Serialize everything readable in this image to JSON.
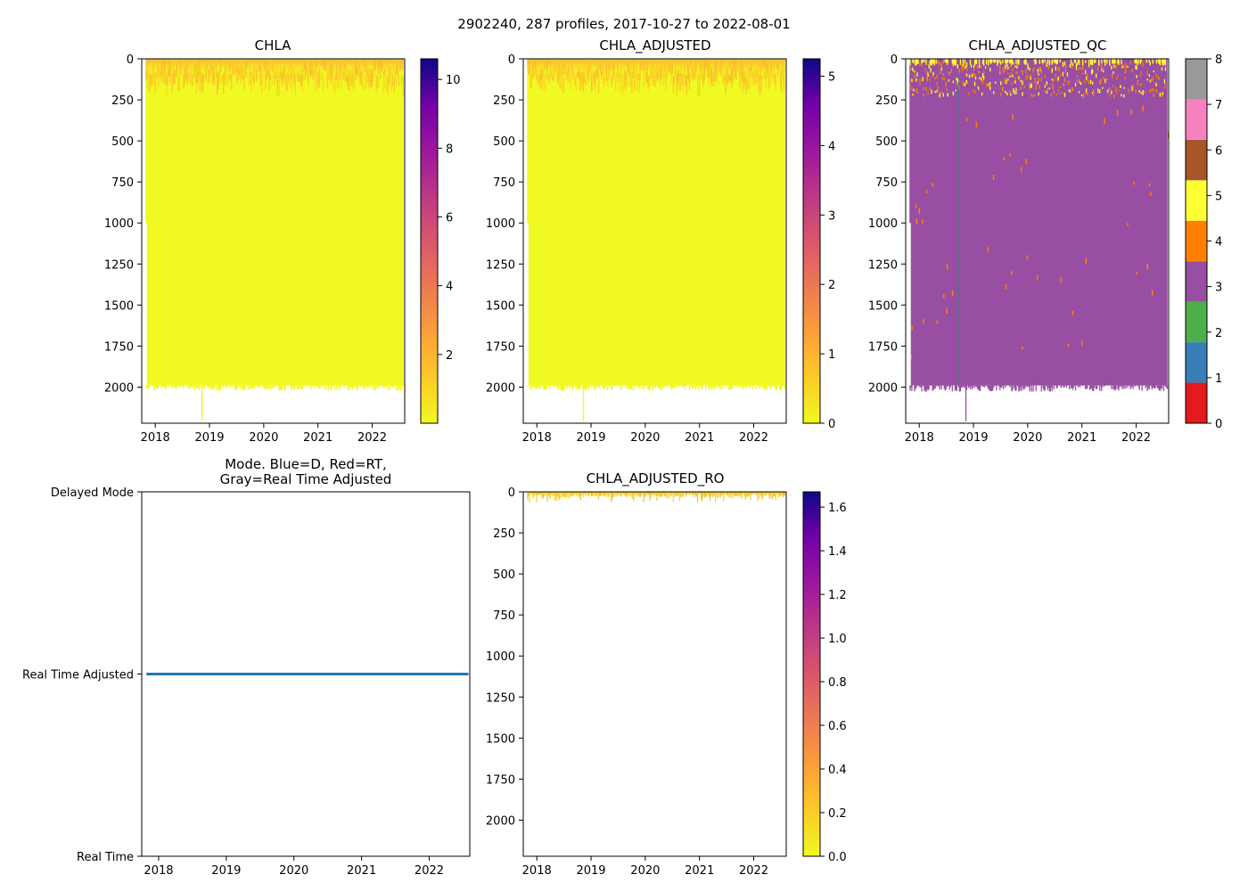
{
  "figure_title": "2902240, 287 profiles, 2017-10-27 to 2022-08-01",
  "chart_data": [
    {
      "id": "chla",
      "type": "heatmap",
      "title": "CHLA",
      "x_range": [
        2017.75,
        2022.6
      ],
      "x_ticks": [
        2018,
        2019,
        2020,
        2021,
        2022
      ],
      "x_tick_labels": [
        "2018",
        "2019",
        "2020",
        "2021",
        "2022"
      ],
      "y_range": [
        0,
        2220
      ],
      "y_inverted": true,
      "y_ticks": [
        0,
        250,
        500,
        750,
        1000,
        1250,
        1500,
        1750,
        2000
      ],
      "y_tick_labels": [
        "0",
        "250",
        "500",
        "750",
        "1000",
        "1250",
        "1500",
        "1750",
        "2000"
      ],
      "data_start": 2017.82,
      "data_end": 2022.58,
      "max_depth": 1990,
      "near_surface_depth": 80,
      "colormap": "plasma_r",
      "colorbar": {
        "range": [
          0,
          10.6
        ],
        "ticks": [
          2,
          4,
          6,
          8,
          10
        ],
        "tick_labels": [
          "2",
          "4",
          "6",
          "8",
          "10"
        ]
      }
    },
    {
      "id": "chla-adjusted",
      "type": "heatmap",
      "title": "CHLA_ADJUSTED",
      "x_range": [
        2017.75,
        2022.6
      ],
      "x_ticks": [
        2018,
        2019,
        2020,
        2021,
        2022
      ],
      "x_tick_labels": [
        "2018",
        "2019",
        "2020",
        "2021",
        "2022"
      ],
      "y_range": [
        0,
        2220
      ],
      "y_inverted": true,
      "y_ticks": [
        0,
        250,
        500,
        750,
        1000,
        1250,
        1500,
        1750,
        2000
      ],
      "y_tick_labels": [
        "0",
        "250",
        "500",
        "750",
        "1000",
        "1250",
        "1500",
        "1750",
        "2000"
      ],
      "data_start": 2017.82,
      "data_end": 2022.58,
      "max_depth": 1990,
      "near_surface_depth": 80,
      "colormap": "plasma_r",
      "colorbar": {
        "range": [
          0,
          5.25
        ],
        "ticks": [
          0,
          1,
          2,
          3,
          4,
          5
        ],
        "tick_labels": [
          "0",
          "1",
          "2",
          "3",
          "4",
          "5"
        ]
      }
    },
    {
      "id": "chla-adjusted-qc",
      "type": "heatmap",
      "title": "CHLA_ADJUSTED_QC",
      "x_range": [
        2017.75,
        2022.6
      ],
      "x_ticks": [
        2018,
        2019,
        2020,
        2021,
        2022
      ],
      "x_tick_labels": [
        "2018",
        "2019",
        "2020",
        "2021",
        "2022"
      ],
      "y_range": [
        0,
        2220
      ],
      "y_inverted": true,
      "y_ticks": [
        0,
        250,
        500,
        750,
        1000,
        1250,
        1500,
        1750,
        2000
      ],
      "y_tick_labels": [
        "0",
        "250",
        "500",
        "750",
        "1000",
        "1250",
        "1500",
        "1750",
        "2000"
      ],
      "data_start": 2017.82,
      "data_end": 2022.58,
      "max_depth": 1990,
      "dominant_qc": 3,
      "colormap": "qc_categorical",
      "qc_colors": [
        "#e41a1c",
        "#377eb8",
        "#4daf4a",
        "#984ea3",
        "#ff7f00",
        "#ffff33",
        "#a65628",
        "#f781bf",
        "#999999"
      ],
      "colorbar": {
        "range": [
          0,
          8
        ],
        "ticks": [
          0,
          1,
          2,
          3,
          4,
          5,
          6,
          7,
          8
        ],
        "tick_labels": [
          "0",
          "1",
          "2",
          "3",
          "4",
          "5",
          "6",
          "7",
          "8"
        ]
      }
    },
    {
      "id": "mode",
      "type": "line",
      "title_line1": "Mode. Blue=D, Red=RT,",
      "title_line2": "Gray=Real Time Adjusted",
      "x_range": [
        2017.75,
        2022.6
      ],
      "x_ticks": [
        2018,
        2019,
        2020,
        2021,
        2022
      ],
      "x_tick_labels": [
        "2018",
        "2019",
        "2020",
        "2021",
        "2022"
      ],
      "y_range": [
        0,
        2
      ],
      "y_ticks": [
        2,
        1,
        0
      ],
      "y_tick_labels": [
        "Delayed Mode",
        "Real Time Adjusted",
        "Real Time"
      ],
      "series": [
        {
          "name": "mode",
          "x": [
            2017.82,
            2022.58
          ],
          "y": [
            1,
            1
          ],
          "color": "#1f77b4"
        }
      ]
    },
    {
      "id": "chla-adjusted-ro",
      "type": "heatmap",
      "title": "CHLA_ADJUSTED_RO",
      "x_range": [
        2017.75,
        2022.6
      ],
      "x_ticks": [
        2018,
        2019,
        2020,
        2021,
        2022
      ],
      "x_tick_labels": [
        "2018",
        "2019",
        "2020",
        "2021",
        "2022"
      ],
      "y_range": [
        0,
        2220
      ],
      "y_inverted": true,
      "y_ticks": [
        0,
        250,
        500,
        750,
        1000,
        1250,
        1500,
        1750,
        2000
      ],
      "y_tick_labels": [
        "0",
        "250",
        "500",
        "750",
        "1000",
        "1250",
        "1500",
        "1750",
        "2000"
      ],
      "data_start": 2017.82,
      "data_end": 2022.58,
      "max_depth": 80,
      "colormap": "plasma_r",
      "colorbar": {
        "range": [
          0,
          1.67
        ],
        "ticks": [
          0.0,
          0.2,
          0.4,
          0.6,
          0.8,
          1.0,
          1.2,
          1.4,
          1.6
        ],
        "tick_labels": [
          "0.0",
          "0.2",
          "0.4",
          "0.6",
          "0.8",
          "1.0",
          "1.2",
          "1.4",
          "1.6"
        ]
      }
    }
  ]
}
